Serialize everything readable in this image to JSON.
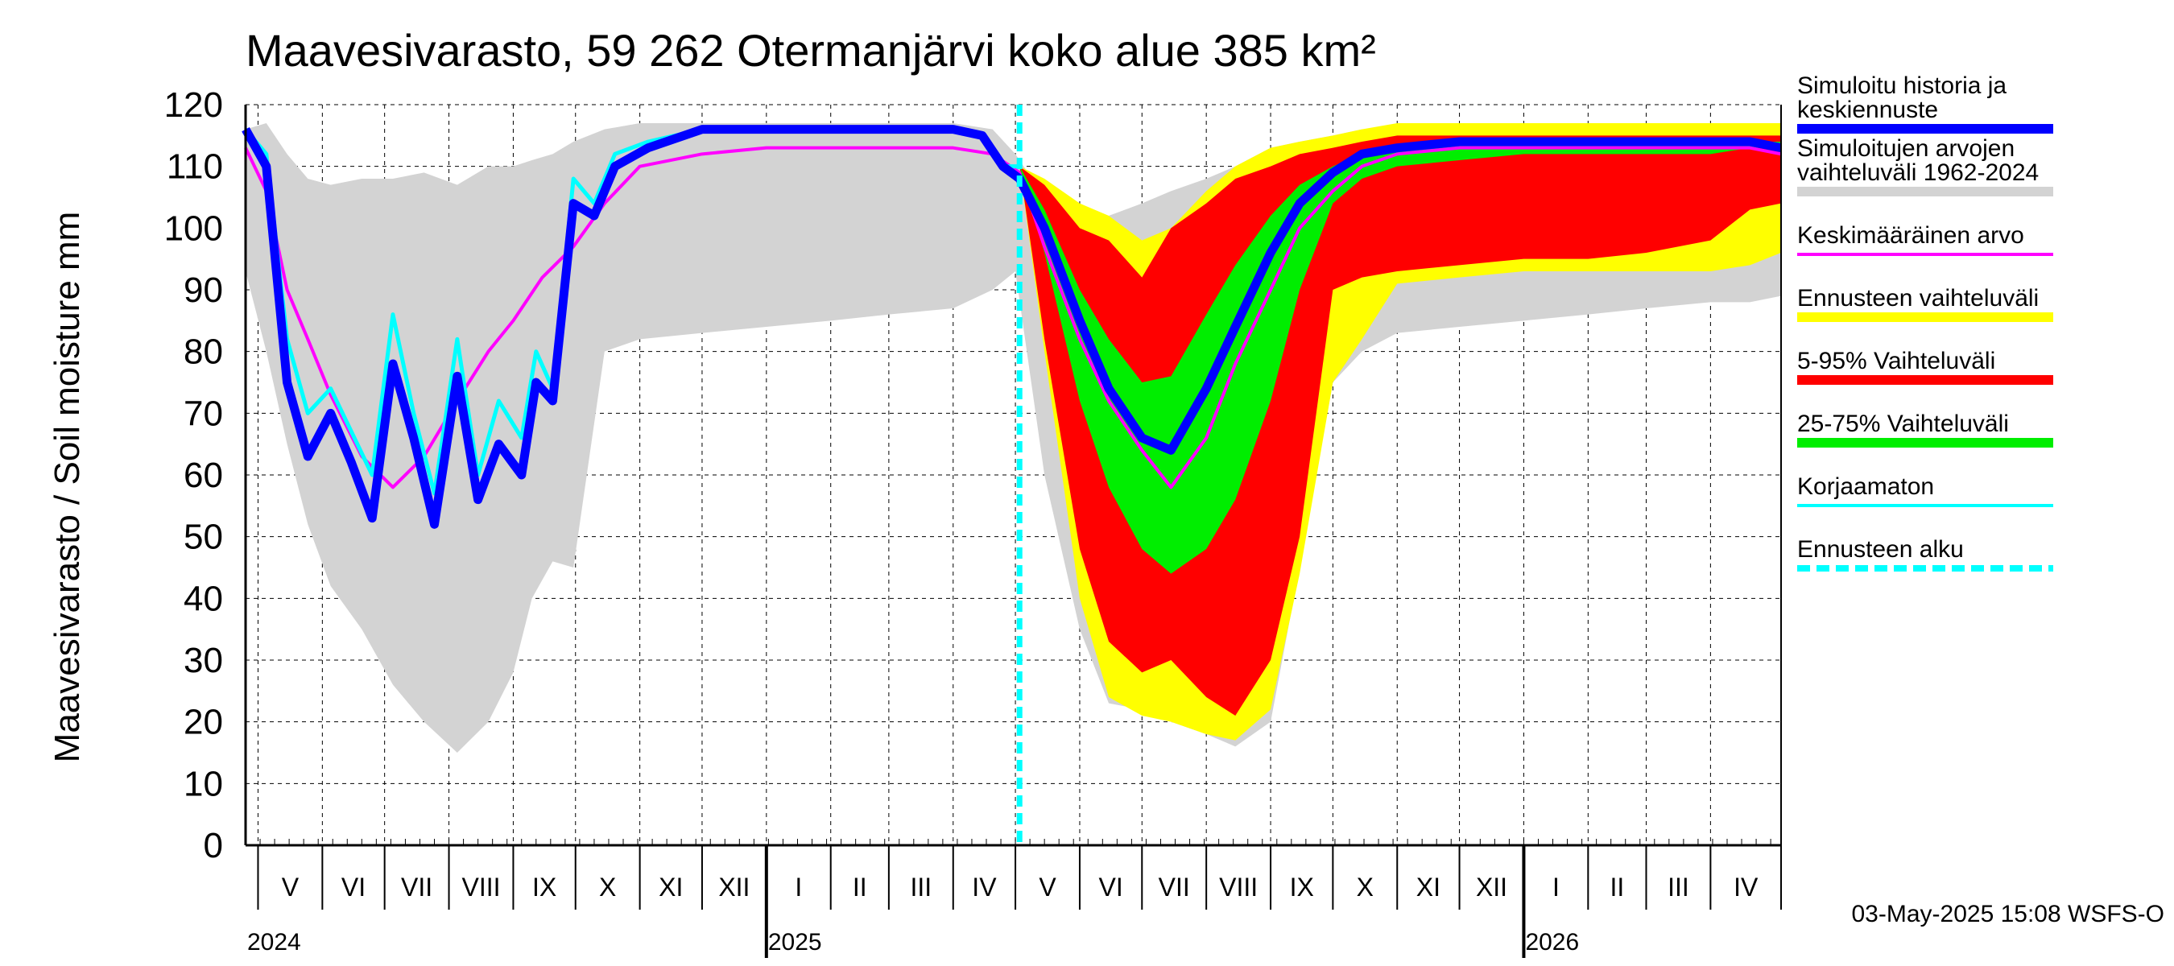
{
  "chart_data": {
    "type": "area",
    "title": "Maavesivarasto, 59 262 Otermanjärvi koko alue 385 km²",
    "ylabel": "Maavesivarasto / Soil moisture   mm",
    "ylim": [
      0,
      120
    ],
    "yticks": [
      0,
      10,
      20,
      30,
      40,
      50,
      60,
      70,
      80,
      90,
      100,
      110,
      120
    ],
    "x_start": "2024-04-25",
    "x_end": "2026-05-05",
    "forecast_start": "2025-05-03",
    "grid": true,
    "legend_position": "right",
    "months": [
      {
        "label": "V",
        "start": "2024-05-01"
      },
      {
        "label": "VI",
        "start": "2024-06-01"
      },
      {
        "label": "VII",
        "start": "2024-07-01"
      },
      {
        "label": "VIII",
        "start": "2024-08-01"
      },
      {
        "label": "IX",
        "start": "2024-09-01"
      },
      {
        "label": "X",
        "start": "2024-10-01"
      },
      {
        "label": "XI",
        "start": "2024-11-01"
      },
      {
        "label": "XII",
        "start": "2024-12-01"
      },
      {
        "label": "I",
        "start": "2025-01-01"
      },
      {
        "label": "II",
        "start": "2025-02-01"
      },
      {
        "label": "III",
        "start": "2025-03-01"
      },
      {
        "label": "IV",
        "start": "2025-04-01"
      },
      {
        "label": "V",
        "start": "2025-05-01"
      },
      {
        "label": "VI",
        "start": "2025-06-01"
      },
      {
        "label": "VII",
        "start": "2025-07-01"
      },
      {
        "label": "VIII",
        "start": "2025-08-01"
      },
      {
        "label": "IX",
        "start": "2025-09-01"
      },
      {
        "label": "X",
        "start": "2025-10-01"
      },
      {
        "label": "XI",
        "start": "2025-11-01"
      },
      {
        "label": "XII",
        "start": "2025-12-01"
      },
      {
        "label": "I",
        "start": "2026-01-01"
      },
      {
        "label": "II",
        "start": "2026-02-01"
      },
      {
        "label": "III",
        "start": "2026-03-01"
      },
      {
        "label": "IV",
        "start": "2026-04-01"
      }
    ],
    "years": [
      {
        "label": "2024",
        "start": "2024-04-25"
      },
      {
        "label": "2025",
        "start": "2025-01-01"
      },
      {
        "label": "2026",
        "start": "2026-01-01"
      }
    ],
    "legend": [
      {
        "label": "Simuloitu historia ja keskiennuste",
        "color": "#0000ff",
        "style": "thick"
      },
      {
        "label": "Simuloitujen arvojen vaihteluväli 1962-2024",
        "color": "#d3d3d3",
        "style": "thick"
      },
      {
        "label": "Keskimääräinen arvo",
        "color": "#ff00ff",
        "style": "thin"
      },
      {
        "label": "Ennusteen vaihteluväli",
        "color": "#ffff00",
        "style": "thick"
      },
      {
        "label": "5-95% Vaihteluväli",
        "color": "#ff0000",
        "style": "thick"
      },
      {
        "label": "25-75% Vaihteluväli",
        "color": "#00ee00",
        "style": "thick"
      },
      {
        "label": "Korjaamaton",
        "color": "#00ffff",
        "style": "thin"
      },
      {
        "label": "Ennusteen alku",
        "color": "#00ffff",
        "style": "dashed"
      }
    ],
    "bands": {
      "historical_range": {
        "name": "Simuloitujen arvojen vaihteluväli 1962-2024",
        "color": "#d3d3d3",
        "x": [
          "2024-04-25",
          "2024-05-05",
          "2024-05-15",
          "2024-05-25",
          "2024-06-05",
          "2024-06-20",
          "2024-07-05",
          "2024-07-20",
          "2024-08-05",
          "2024-08-20",
          "2024-09-01",
          "2024-09-10",
          "2024-09-20",
          "2024-09-30",
          "2024-10-15",
          "2024-11-01",
          "2024-12-01",
          "2025-01-01",
          "2025-02-01",
          "2025-03-01",
          "2025-04-01",
          "2025-04-20",
          "2025-05-01",
          "2025-05-15",
          "2025-06-01",
          "2025-06-15",
          "2025-07-01",
          "2025-07-15",
          "2025-08-01",
          "2025-08-15",
          "2025-09-01",
          "2025-09-15",
          "2025-10-01",
          "2025-10-15",
          "2025-11-01",
          "2025-12-01",
          "2026-01-01",
          "2026-02-01",
          "2026-03-01",
          "2026-04-01",
          "2026-04-20",
          "2026-05-05"
        ],
        "low": [
          93,
          80,
          65,
          52,
          42,
          35,
          26,
          20,
          15,
          20,
          28,
          40,
          46,
          45,
          80,
          82,
          83,
          84,
          85,
          86,
          87,
          90,
          93,
          60,
          35,
          23,
          22,
          20,
          18,
          16,
          20,
          45,
          75,
          80,
          83,
          84,
          85,
          86,
          87,
          88,
          88,
          89
        ],
        "high": [
          116,
          117,
          112,
          108,
          107,
          108,
          108,
          109,
          107,
          110,
          110,
          111,
          112,
          114,
          116,
          117,
          117,
          117,
          117,
          117,
          117,
          116,
          112,
          105,
          103,
          102,
          104,
          106,
          108,
          110,
          113,
          114,
          115,
          116,
          116,
          116,
          117,
          117,
          117,
          117,
          117,
          117
        ]
      },
      "forecast_range": {
        "name": "Ennusteen vaihteluväli",
        "color": "#ffff00",
        "x": [
          "2025-05-03",
          "2025-05-15",
          "2025-06-01",
          "2025-06-15",
          "2025-07-01",
          "2025-07-15",
          "2025-08-01",
          "2025-08-15",
          "2025-09-01",
          "2025-09-15",
          "2025-10-01",
          "2025-10-15",
          "2025-11-01",
          "2025-12-01",
          "2026-01-01",
          "2026-02-01",
          "2026-03-01",
          "2026-04-01",
          "2026-04-20",
          "2026-05-05"
        ],
        "low": [
          110,
          80,
          40,
          24,
          21,
          20,
          18,
          17,
          22,
          44,
          75,
          82,
          91,
          92,
          93,
          93,
          93,
          93,
          94,
          96
        ],
        "high": [
          110,
          108,
          104,
          102,
          98,
          100,
          106,
          110,
          113,
          114,
          115,
          116,
          117,
          117,
          117,
          117,
          117,
          117,
          117,
          117
        ]
      },
      "p5_95": {
        "name": "5-95% Vaihteluväli",
        "color": "#ff0000",
        "x": [
          "2025-05-03",
          "2025-05-15",
          "2025-06-01",
          "2025-06-15",
          "2025-07-01",
          "2025-07-15",
          "2025-08-01",
          "2025-08-15",
          "2025-09-01",
          "2025-09-15",
          "2025-10-01",
          "2025-10-15",
          "2025-11-01",
          "2025-12-01",
          "2026-01-01",
          "2026-02-01",
          "2026-03-01",
          "2026-04-01",
          "2026-04-20",
          "2026-05-05"
        ],
        "low": [
          110,
          82,
          48,
          33,
          28,
          30,
          24,
          21,
          30,
          50,
          90,
          92,
          93,
          94,
          95,
          95,
          96,
          98,
          103,
          104
        ],
        "high": [
          110,
          107,
          100,
          98,
          92,
          100,
          104,
          108,
          110,
          112,
          113,
          114,
          115,
          115,
          115,
          115,
          115,
          115,
          115,
          115
        ]
      },
      "p25_75": {
        "name": "25-75% Vaihteluväli",
        "color": "#00ee00",
        "x": [
          "2025-05-03",
          "2025-05-15",
          "2025-06-01",
          "2025-06-15",
          "2025-07-01",
          "2025-07-15",
          "2025-08-01",
          "2025-08-15",
          "2025-09-01",
          "2025-09-15",
          "2025-10-01",
          "2025-10-15",
          "2025-11-01",
          "2025-12-01",
          "2026-01-01",
          "2026-02-01",
          "2026-03-01",
          "2026-04-01",
          "2026-04-20",
          "2026-05-05"
        ],
        "low": [
          110,
          96,
          72,
          58,
          48,
          44,
          48,
          56,
          72,
          90,
          104,
          108,
          110,
          111,
          112,
          112,
          112,
          112,
          113,
          113
        ],
        "high": [
          110,
          103,
          90,
          82,
          75,
          76,
          86,
          94,
          102,
          107,
          110,
          112,
          113,
          114,
          114,
          114,
          114,
          114,
          114,
          114
        ]
      }
    },
    "series": [
      {
        "name": "Keskimääräinen arvo",
        "color": "#ff00ff",
        "x": [
          "2024-04-25",
          "2024-05-05",
          "2024-05-15",
          "2024-05-25",
          "2024-06-05",
          "2024-06-20",
          "2024-07-05",
          "2024-07-20",
          "2024-08-05",
          "2024-08-20",
          "2024-09-01",
          "2024-09-15",
          "2024-09-30",
          "2024-10-15",
          "2024-11-01",
          "2024-12-01",
          "2025-01-01",
          "2025-02-01",
          "2025-03-01",
          "2025-04-01",
          "2025-04-20",
          "2025-05-03",
          "2025-05-15",
          "2025-06-01",
          "2025-06-15",
          "2025-07-01",
          "2025-07-15",
          "2025-08-01",
          "2025-08-15",
          "2025-09-01",
          "2025-09-15",
          "2025-10-01",
          "2025-10-15",
          "2025-11-01",
          "2025-12-01",
          "2026-01-01",
          "2026-02-01",
          "2026-03-01",
          "2026-04-01",
          "2026-04-20",
          "2026-05-05"
        ],
        "y": [
          113,
          106,
          90,
          82,
          73,
          63,
          58,
          63,
          72,
          80,
          85,
          92,
          97,
          104,
          110,
          112,
          113,
          113,
          113,
          113,
          112,
          109,
          97,
          82,
          72,
          64,
          58,
          66,
          78,
          90,
          100,
          106,
          110,
          112,
          113,
          113,
          113,
          113,
          113,
          113,
          112
        ]
      },
      {
        "name": "Korjaamaton",
        "color": "#00ffff",
        "x": [
          "2024-04-25",
          "2024-05-05",
          "2024-05-15",
          "2024-05-25",
          "2024-06-05",
          "2024-06-15",
          "2024-06-25",
          "2024-07-05",
          "2024-07-15",
          "2024-07-25",
          "2024-08-05",
          "2024-08-15",
          "2024-08-25",
          "2024-09-05",
          "2024-09-12",
          "2024-09-20",
          "2024-09-30",
          "2024-10-10",
          "2024-10-20",
          "2024-11-05",
          "2024-12-01",
          "2025-01-01",
          "2025-02-01",
          "2025-03-01",
          "2025-04-01",
          "2025-04-15",
          "2025-04-25",
          "2025-05-03"
        ],
        "y": [
          116,
          112,
          82,
          70,
          74,
          67,
          60,
          86,
          70,
          57,
          82,
          60,
          72,
          66,
          80,
          74,
          108,
          104,
          112,
          114,
          116,
          116,
          116,
          116,
          116,
          115,
          110,
          110
        ]
      },
      {
        "name": "Simuloitu historia ja keskiennuste",
        "color": "#0000ff",
        "x": [
          "2024-04-25",
          "2024-05-05",
          "2024-05-15",
          "2024-05-25",
          "2024-06-05",
          "2024-06-15",
          "2024-06-25",
          "2024-07-05",
          "2024-07-15",
          "2024-07-25",
          "2024-08-05",
          "2024-08-15",
          "2024-08-25",
          "2024-09-05",
          "2024-09-12",
          "2024-09-20",
          "2024-09-30",
          "2024-10-10",
          "2024-10-20",
          "2024-11-05",
          "2024-12-01",
          "2025-01-01",
          "2025-02-01",
          "2025-03-01",
          "2025-04-01",
          "2025-04-15",
          "2025-04-25",
          "2025-05-03",
          "2025-05-15",
          "2025-06-01",
          "2025-06-15",
          "2025-07-01",
          "2025-07-15",
          "2025-08-01",
          "2025-08-15",
          "2025-09-01",
          "2025-09-15",
          "2025-10-01",
          "2025-10-15",
          "2025-11-01",
          "2025-12-01",
          "2026-01-01",
          "2026-02-01",
          "2026-03-01",
          "2026-04-01",
          "2026-04-20",
          "2026-05-05"
        ],
        "y": [
          116,
          110,
          75,
          63,
          70,
          62,
          53,
          78,
          66,
          52,
          76,
          56,
          65,
          60,
          75,
          72,
          104,
          102,
          110,
          113,
          116,
          116,
          116,
          116,
          116,
          115,
          110,
          108,
          100,
          85,
          74,
          66,
          64,
          74,
          84,
          96,
          104,
          109,
          112,
          113,
          114,
          114,
          114,
          114,
          114,
          114,
          113
        ]
      }
    ]
  },
  "timestamp": "03-May-2025 15:08 WSFS-O"
}
